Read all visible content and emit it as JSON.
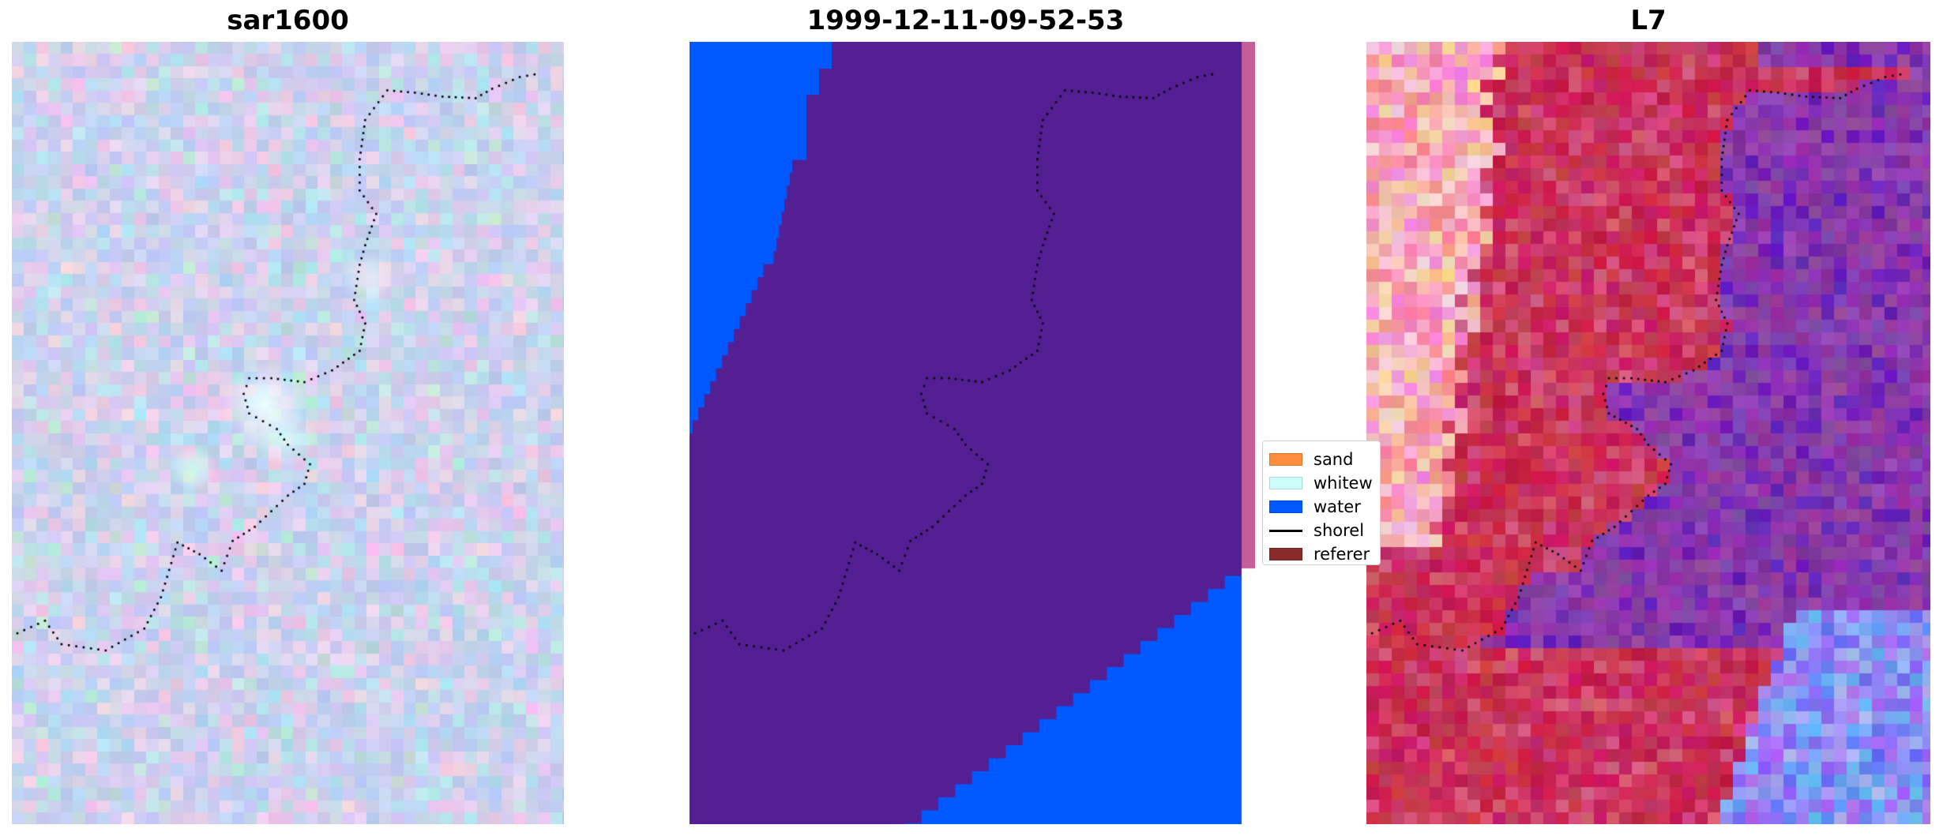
{
  "panels": [
    {
      "title": "sar1600",
      "kind": "sar"
    },
    {
      "title": "1999-12-11-09-52-53",
      "kind": "classified"
    },
    {
      "title": "L7",
      "kind": "landsat"
    }
  ],
  "legend": {
    "items": [
      {
        "label": "sand",
        "type": "patch",
        "color": "#ff8c3a"
      },
      {
        "label": "whitew",
        "type": "patch",
        "color": "#ccfffa"
      },
      {
        "label": "water",
        "type": "patch",
        "color": "#0059ff"
      },
      {
        "label": "shorel",
        "type": "line",
        "color": "#000000"
      },
      {
        "label": "referer",
        "type": "patch",
        "color": "#8b2a2a"
      }
    ]
  },
  "colors": {
    "land_class": "#531f93",
    "water_class": "#0059ff",
    "edge_strip": "#c45f97",
    "shoreline_dots": "#000000"
  }
}
